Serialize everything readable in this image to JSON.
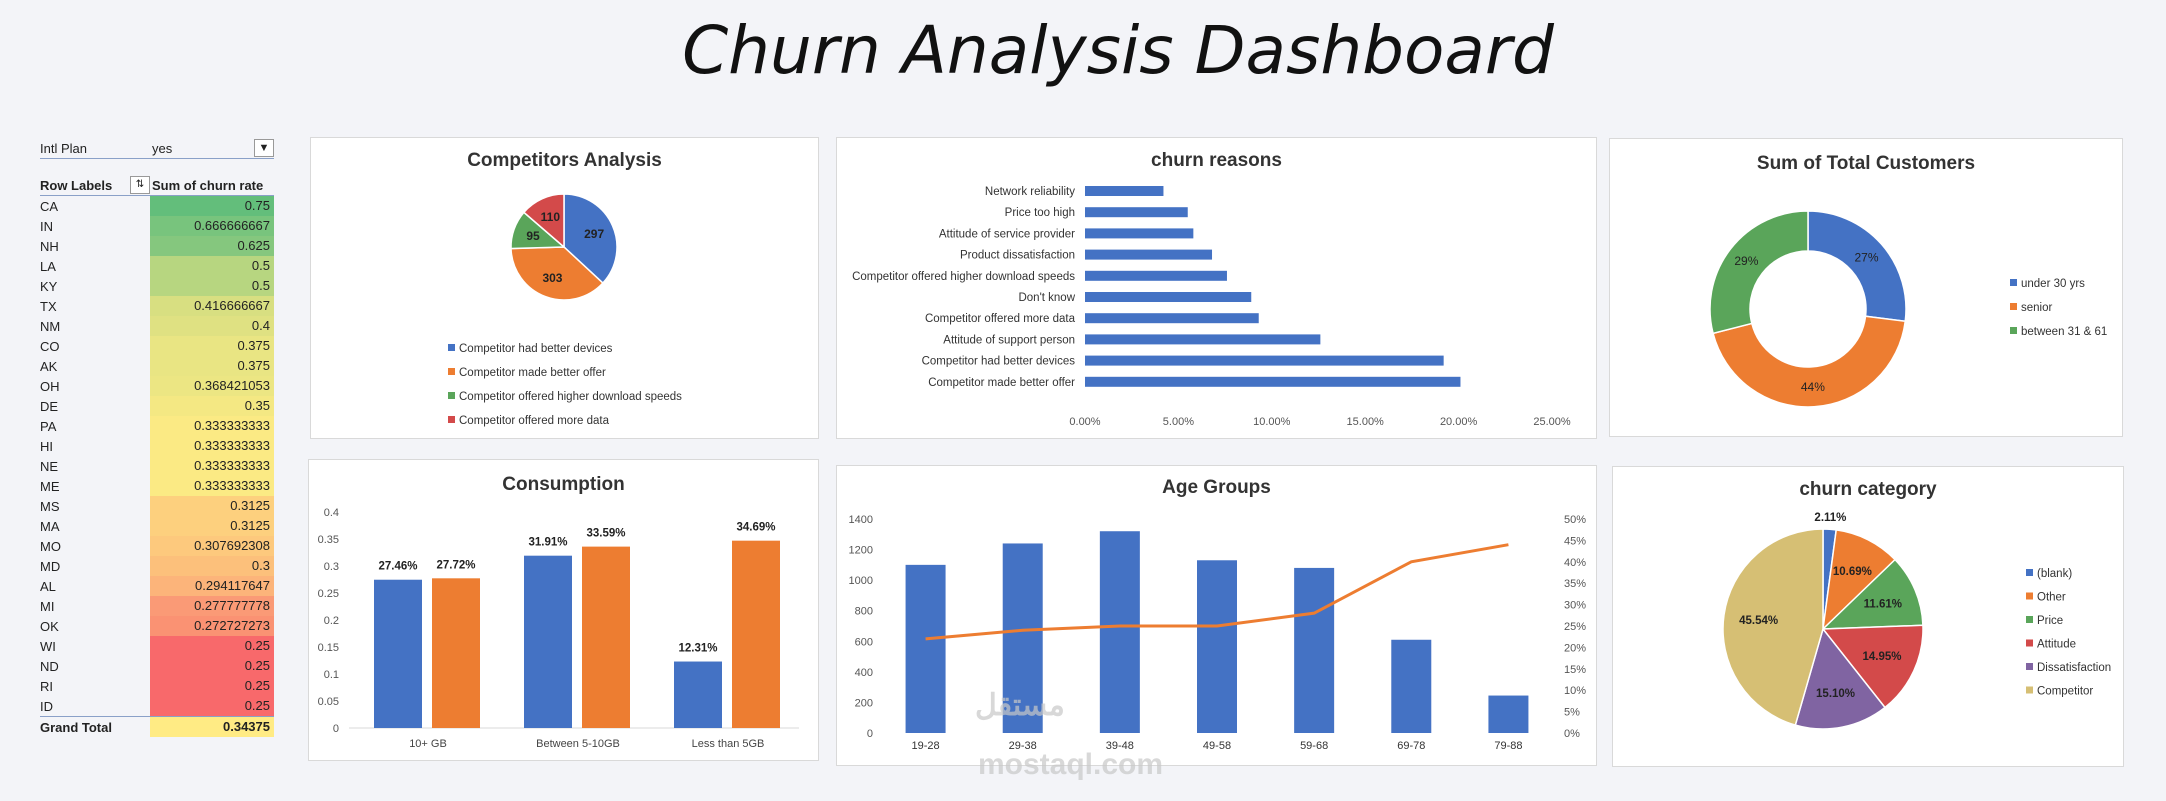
{
  "title": "Churn Analysis Dashboard",
  "pivot": {
    "filter_label": "Intl Plan",
    "filter_value": "yes",
    "row_labels": "Row Labels",
    "value_header": "Sum of churn rate",
    "rows": [
      {
        "state": "CA",
        "value": "0.75",
        "color": "#63be7b"
      },
      {
        "state": "IN",
        "value": "0.666666667",
        "color": "#78c47d"
      },
      {
        "state": "NH",
        "value": "0.625",
        "color": "#85c77e"
      },
      {
        "state": "LA",
        "value": "0.5",
        "color": "#b7d680"
      },
      {
        "state": "KY",
        "value": "0.5",
        "color": "#b7d680"
      },
      {
        "state": "TX",
        "value": "0.416666667",
        "color": "#d8df81"
      },
      {
        "state": "NM",
        "value": "0.4",
        "color": "#dfe182"
      },
      {
        "state": "CO",
        "value": "0.375",
        "color": "#e9e583"
      },
      {
        "state": "AK",
        "value": "0.375",
        "color": "#e9e583"
      },
      {
        "state": "OH",
        "value": "0.368421053",
        "color": "#ece683"
      },
      {
        "state": "DE",
        "value": "0.35",
        "color": "#f4e883"
      },
      {
        "state": "PA",
        "value": "0.333333333",
        "color": "#fbea84"
      },
      {
        "state": "HI",
        "value": "0.333333333",
        "color": "#fbea84"
      },
      {
        "state": "NE",
        "value": "0.333333333",
        "color": "#fbea84"
      },
      {
        "state": "ME",
        "value": "0.333333333",
        "color": "#fbea84"
      },
      {
        "state": "MS",
        "value": "0.3125",
        "color": "#fdd07e"
      },
      {
        "state": "MA",
        "value": "0.3125",
        "color": "#fdd07e"
      },
      {
        "state": "MO",
        "value": "0.307692308",
        "color": "#fdc97d"
      },
      {
        "state": "MD",
        "value": "0.3",
        "color": "#fcc07b"
      },
      {
        "state": "AL",
        "value": "0.294117647",
        "color": "#fcb47a"
      },
      {
        "state": "MI",
        "value": "0.277777778",
        "color": "#fa9a76"
      },
      {
        "state": "OK",
        "value": "0.272727273",
        "color": "#fa9273"
      },
      {
        "state": "WI",
        "value": "0.25",
        "color": "#f8696b"
      },
      {
        "state": "ND",
        "value": "0.25",
        "color": "#f8696b"
      },
      {
        "state": "RI",
        "value": "0.25",
        "color": "#f8696b"
      },
      {
        "state": "ID",
        "value": "0.25",
        "color": "#f8696b"
      }
    ],
    "grand_label": "Grand Total",
    "grand_value": "0.34375"
  },
  "chart_data": [
    {
      "id": "competitors",
      "type": "pie",
      "title": "Competitors Analysis",
      "slices": [
        {
          "label": "Competitor had better devices",
          "value": 297,
          "color": "#4472c4"
        },
        {
          "label": "Competitor made better offer",
          "value": 303,
          "color": "#ed7d31"
        },
        {
          "label": "Competitor offered higher download speeds",
          "value": 95,
          "color": "#5aa55a"
        },
        {
          "label": "Competitor offered more data",
          "value": 110,
          "color": "#d34a4a"
        }
      ]
    },
    {
      "id": "reasons",
      "type": "bar",
      "title": "churn reasons",
      "categories": [
        "Network reliability",
        "Price too high",
        "Attitude of service provider",
        "Product dissatisfaction",
        "Competitor offered higher download speeds",
        "Don't know",
        "Competitor offered more data",
        "Attitude of support person",
        "Competitor had better devices",
        "Competitor made better offer"
      ],
      "values": [
        4.2,
        5.5,
        5.8,
        6.8,
        7.6,
        8.9,
        9.3,
        12.6,
        19.2,
        20.1
      ],
      "xticks": [
        "0.00%",
        "5.00%",
        "10.00%",
        "15.00%",
        "20.00%",
        "25.00%"
      ],
      "xlim": [
        0,
        25
      ],
      "color": "#4472c4"
    },
    {
      "id": "customers",
      "type": "pie",
      "title": "Sum of Total Customers",
      "slices": [
        {
          "label": "under 30 yrs",
          "value": 27,
          "text": "27%",
          "color": "#4472c4"
        },
        {
          "label": "senior",
          "value": 44,
          "text": "44%",
          "color": "#ed7d31"
        },
        {
          "label": "between 31 & 61",
          "value": 29,
          "text": "29%",
          "color": "#5aa55a"
        }
      ]
    },
    {
      "id": "consumption",
      "type": "bar",
      "title": "Consumption",
      "categories": [
        "10+ GB",
        "Between 5-10GB",
        "Less than 5GB"
      ],
      "series": [
        {
          "values": [
            0.2746,
            0.3191,
            0.1231
          ],
          "labels": [
            "27.46%",
            "31.91%",
            "12.31%"
          ],
          "color": "#4472c4"
        },
        {
          "values": [
            0.2772,
            0.3359,
            0.3469
          ],
          "labels": [
            "27.72%",
            "33.59%",
            "34.69%"
          ],
          "color": "#ed7d31"
        }
      ],
      "yticks": [
        "0",
        "0.05",
        "0.1",
        "0.15",
        "0.2",
        "0.25",
        "0.3",
        "0.35",
        "0.4"
      ],
      "ylim": [
        0,
        0.4
      ]
    },
    {
      "id": "age",
      "type": "bar",
      "title": "Age Groups",
      "categories": [
        "19-28",
        "29-38",
        "39-48",
        "49-58",
        "59-68",
        "69-78",
        "79-88"
      ],
      "bars": [
        1100,
        1240,
        1320,
        1130,
        1080,
        610,
        245
      ],
      "line": [
        22,
        24,
        25,
        25,
        28,
        40,
        44
      ],
      "yticks": [
        "0",
        "200",
        "400",
        "600",
        "800",
        "1000",
        "1200",
        "1400"
      ],
      "ylim": [
        0,
        1400
      ],
      "y2ticks": [
        "0%",
        "5%",
        "10%",
        "15%",
        "20%",
        "25%",
        "30%",
        "35%",
        "40%",
        "45%",
        "50%"
      ],
      "y2lim": [
        0,
        50
      ]
    },
    {
      "id": "category",
      "type": "pie",
      "title": "churn category",
      "slices": [
        {
          "label": "(blank)",
          "value": 2.11,
          "text": "2.11%",
          "color": "#4472c4"
        },
        {
          "label": "Other",
          "value": 10.69,
          "text": "10.69%",
          "color": "#ed7d31"
        },
        {
          "label": "Price",
          "value": 11.61,
          "text": "11.61%",
          "color": "#5aa55a"
        },
        {
          "label": "Attitude",
          "value": 14.95,
          "text": "14.95%",
          "color": "#d34a4a"
        },
        {
          "label": "Dissatisfaction",
          "value": 15.1,
          "text": "15.10%",
          "color": "#8064a2"
        },
        {
          "label": "Competitor",
          "value": 45.54,
          "text": "45.54%",
          "color": "#d6bf74"
        }
      ]
    }
  ],
  "watermark": {
    "line1": "مستقل",
    "line2": "mostaql.com"
  }
}
